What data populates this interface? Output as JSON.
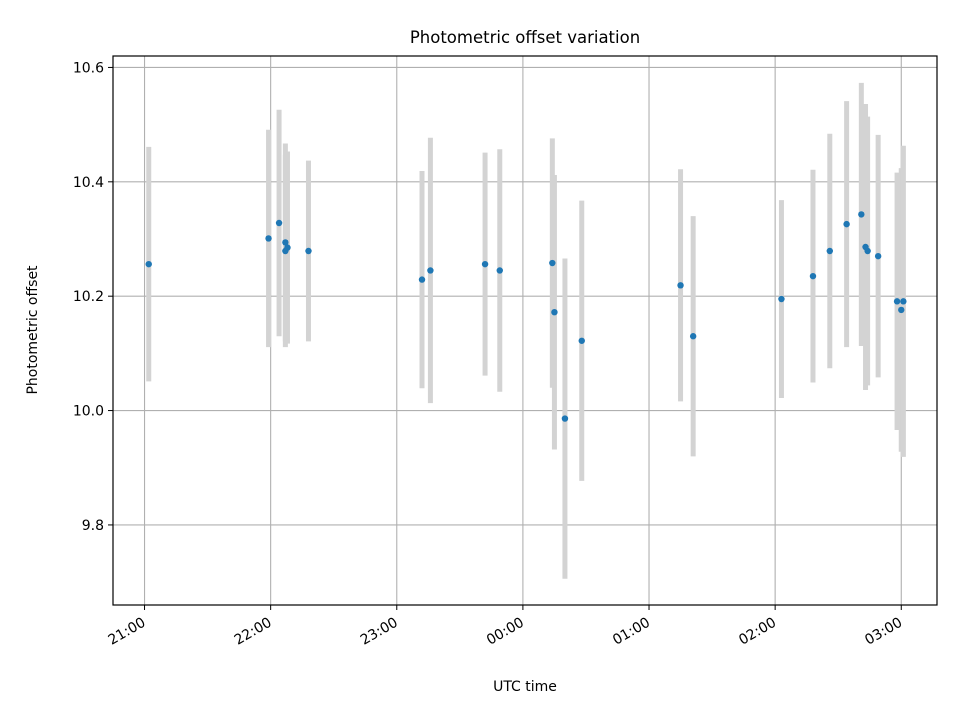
{
  "chart_data": {
    "type": "scatter",
    "title": "Photometric offset variation",
    "xlabel": "UTC time",
    "ylabel": "Photometric offset",
    "x_axis_kind": "time",
    "x_range": [
      "20:45",
      "03:17"
    ],
    "ylim": [
      9.66,
      10.62
    ],
    "x_ticks": [
      "21:00",
      "22:00",
      "23:00",
      "00:00",
      "01:00",
      "02:00",
      "03:00"
    ],
    "y_ticks": [
      9.8,
      10.0,
      10.2,
      10.4,
      10.6
    ],
    "grid": true,
    "colors": {
      "points": "#1f77b4",
      "error_bars": "#d3d3d3",
      "grid": "#b0b0b0"
    },
    "points": [
      {
        "time": "21:02",
        "offset": 10.256,
        "error": 0.205
      },
      {
        "time": "21:59",
        "offset": 10.301,
        "error": 0.19
      },
      {
        "time": "22:04",
        "offset": 10.328,
        "error": 0.198
      },
      {
        "time": "22:07",
        "offset": 10.294,
        "error": 0.173
      },
      {
        "time": "22:07",
        "offset": 10.279,
        "error": 0.168
      },
      {
        "time": "22:08",
        "offset": 10.285,
        "error": 0.168
      },
      {
        "time": "22:18",
        "offset": 10.279,
        "error": 0.158
      },
      {
        "time": "23:12",
        "offset": 10.229,
        "error": 0.19
      },
      {
        "time": "23:16",
        "offset": 10.245,
        "error": 0.232
      },
      {
        "time": "23:42",
        "offset": 10.256,
        "error": 0.195
      },
      {
        "time": "23:49",
        "offset": 10.245,
        "error": 0.212
      },
      {
        "time": "00:14",
        "offset": 10.258,
        "error": 0.218
      },
      {
        "time": "00:15",
        "offset": 10.172,
        "error": 0.24
      },
      {
        "time": "00:20",
        "offset": 9.986,
        "error": 0.28
      },
      {
        "time": "00:28",
        "offset": 10.122,
        "error": 0.245
      },
      {
        "time": "01:15",
        "offset": 10.219,
        "error": 0.203
      },
      {
        "time": "01:21",
        "offset": 10.13,
        "error": 0.21
      },
      {
        "time": "02:03",
        "offset": 10.195,
        "error": 0.173
      },
      {
        "time": "02:18",
        "offset": 10.235,
        "error": 0.186
      },
      {
        "time": "02:26",
        "offset": 10.279,
        "error": 0.205
      },
      {
        "time": "02:34",
        "offset": 10.326,
        "error": 0.215
      },
      {
        "time": "02:41",
        "offset": 10.343,
        "error": 0.23
      },
      {
        "time": "02:43",
        "offset": 10.286,
        "error": 0.25
      },
      {
        "time": "02:44",
        "offset": 10.279,
        "error": 0.235
      },
      {
        "time": "02:49",
        "offset": 10.27,
        "error": 0.212
      },
      {
        "time": "02:58",
        "offset": 10.191,
        "error": 0.225
      },
      {
        "time": "03:00",
        "offset": 10.176,
        "error": 0.248
      },
      {
        "time": "03:01",
        "offset": 10.191,
        "error": 0.272
      }
    ]
  }
}
